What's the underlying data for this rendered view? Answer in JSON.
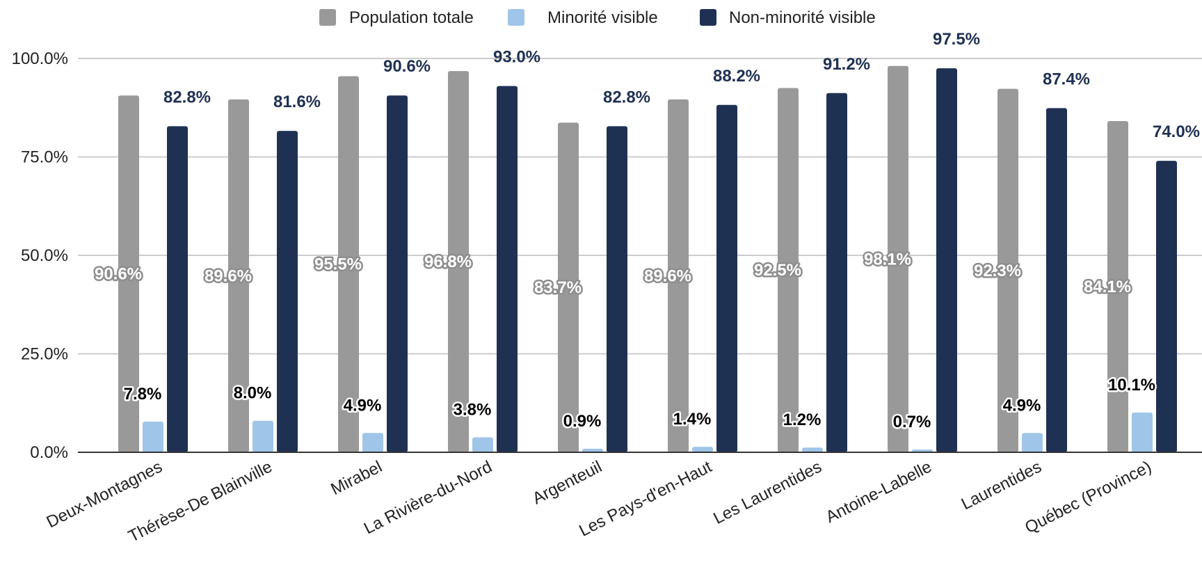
{
  "chart_data": {
    "type": "bar",
    "title": "",
    "xlabel": "",
    "ylabel": "",
    "ylim": [
      0,
      100
    ],
    "yticks": [
      "0.0%",
      "25.0%",
      "50.0%",
      "75.0%",
      "100.0%"
    ],
    "grid": true,
    "legend_position": "top-center",
    "categories": [
      "Deux-Montagnes",
      "Thérèse-De Blainville",
      "Mirabel",
      "La Rivière-du-Nord",
      "Argenteuil",
      "Les Pays-d'en-Haut",
      "Les Laurentides",
      "Antoine-Labelle",
      "Laurentides",
      "Québec (Province)"
    ],
    "series": [
      {
        "name": "Population totale",
        "color": "#999999",
        "values": [
          90.6,
          89.6,
          95.5,
          96.8,
          83.7,
          89.6,
          92.5,
          98.1,
          92.3,
          84.1
        ],
        "labels": [
          "90.6%",
          "89.6%",
          "95.5%",
          "96.8%",
          "83.7%",
          "89.6%",
          "92.5%",
          "98.1%",
          "92.3%",
          "84.1%"
        ]
      },
      {
        "name": "Minorité visible",
        "color": "#9fc5e8",
        "values": [
          7.8,
          8.0,
          4.9,
          3.8,
          0.9,
          1.4,
          1.2,
          0.7,
          4.9,
          10.1
        ],
        "labels": [
          "7.8%",
          "8.0%",
          "4.9%",
          "3.8%",
          "0.9%",
          "1.4%",
          "1.2%",
          "0.7%",
          "4.9%",
          "10.1%"
        ]
      },
      {
        "name": "Non-minorité visible",
        "color": "#1f3153",
        "values": [
          82.8,
          81.6,
          90.6,
          93.0,
          82.8,
          88.2,
          91.2,
          97.5,
          87.4,
          74.0
        ],
        "labels": [
          "82.8%",
          "81.6%",
          "90.6%",
          "93.0%",
          "82.8%",
          "88.2%",
          "91.2%",
          "97.5%",
          "87.4%",
          "74.0%"
        ]
      }
    ]
  }
}
